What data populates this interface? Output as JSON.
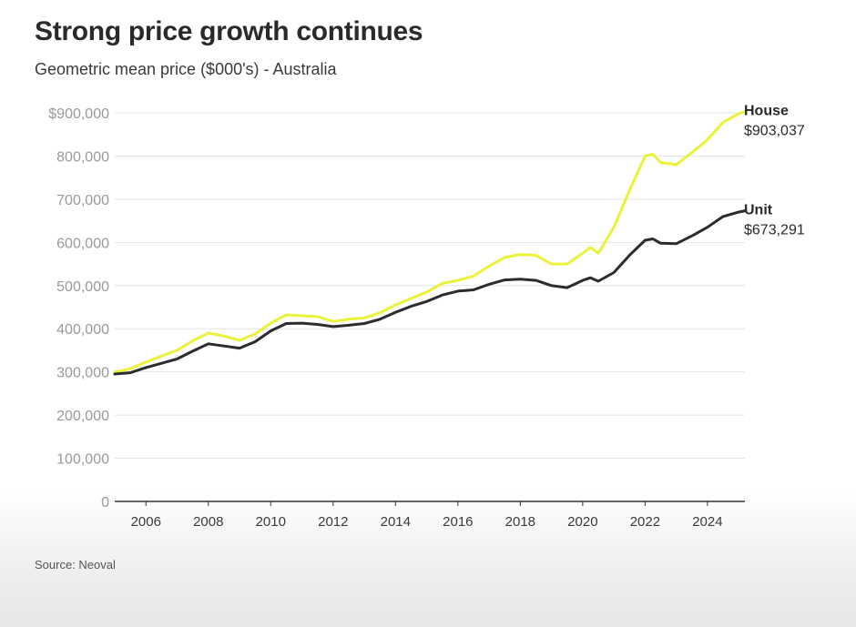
{
  "chart_data": {
    "type": "line",
    "title": "Strong price growth continues",
    "subtitle": "Geometric mean price ($000's) - Australia",
    "source": "Source: Neoval",
    "xlabel": "",
    "ylabel": "",
    "xlim": [
      2005,
      2025.2
    ],
    "ylim": [
      0,
      900000
    ],
    "x_ticks": [
      2006,
      2008,
      2010,
      2012,
      2014,
      2016,
      2018,
      2020,
      2022,
      2024
    ],
    "x_tick_labels": [
      "2006",
      "2008",
      "2010",
      "2012",
      "2014",
      "2016",
      "2018",
      "2020",
      "2022",
      "2024"
    ],
    "y_ticks": [
      0,
      100000,
      200000,
      300000,
      400000,
      500000,
      600000,
      700000,
      800000,
      900000
    ],
    "y_tick_labels": [
      "0",
      "100,000",
      "200,000",
      "300,000",
      "400,000",
      "500,000",
      "600,000",
      "700,000",
      "800,000",
      "$900,000"
    ],
    "grid": true,
    "legend": "end-of-line labels",
    "series": [
      {
        "name": "House",
        "end_label": "$903,037",
        "color": "#eaf23a",
        "x": [
          2005.0,
          2005.5,
          2006.0,
          2006.5,
          2007.0,
          2007.5,
          2008.0,
          2008.5,
          2009.0,
          2009.5,
          2010.0,
          2010.5,
          2011.0,
          2011.5,
          2012.0,
          2012.5,
          2013.0,
          2013.5,
          2014.0,
          2014.5,
          2015.0,
          2015.5,
          2016.0,
          2016.5,
          2017.0,
          2017.5,
          2018.0,
          2018.5,
          2019.0,
          2019.5,
          2020.0,
          2020.25,
          2020.5,
          2021.0,
          2021.5,
          2022.0,
          2022.25,
          2022.5,
          2023.0,
          2023.5,
          2024.0,
          2024.5,
          2025.0,
          2025.2
        ],
        "values": [
          300000,
          307000,
          323000,
          337000,
          350000,
          372000,
          390000,
          383000,
          373000,
          388000,
          413000,
          432000,
          430000,
          428000,
          417000,
          422000,
          425000,
          437000,
          455000,
          470000,
          485000,
          505000,
          512000,
          522000,
          545000,
          565000,
          572000,
          570000,
          550000,
          550000,
          575000,
          588000,
          575000,
          635000,
          720000,
          800000,
          804000,
          785000,
          780000,
          808000,
          838000,
          878000,
          898000,
          903037
        ]
      },
      {
        "name": "Unit",
        "end_label": "$673,291",
        "color": "#2b2b30",
        "x": [
          2005.0,
          2005.5,
          2006.0,
          2006.5,
          2007.0,
          2007.5,
          2008.0,
          2008.5,
          2009.0,
          2009.5,
          2010.0,
          2010.5,
          2011.0,
          2011.5,
          2012.0,
          2012.5,
          2013.0,
          2013.5,
          2014.0,
          2014.5,
          2015.0,
          2015.5,
          2016.0,
          2016.5,
          2017.0,
          2017.5,
          2018.0,
          2018.5,
          2019.0,
          2019.5,
          2020.0,
          2020.25,
          2020.5,
          2021.0,
          2021.5,
          2022.0,
          2022.25,
          2022.5,
          2023.0,
          2023.5,
          2024.0,
          2024.5,
          2025.0,
          2025.2
        ],
        "values": [
          295000,
          298000,
          310000,
          320000,
          330000,
          348000,
          365000,
          360000,
          355000,
          370000,
          395000,
          412000,
          413000,
          410000,
          405000,
          408000,
          412000,
          422000,
          438000,
          452000,
          463000,
          478000,
          487000,
          490000,
          503000,
          513000,
          515000,
          512000,
          500000,
          495000,
          512000,
          518000,
          510000,
          530000,
          570000,
          605000,
          608000,
          598000,
          597000,
          615000,
          635000,
          660000,
          670000,
          673291
        ]
      }
    ]
  }
}
